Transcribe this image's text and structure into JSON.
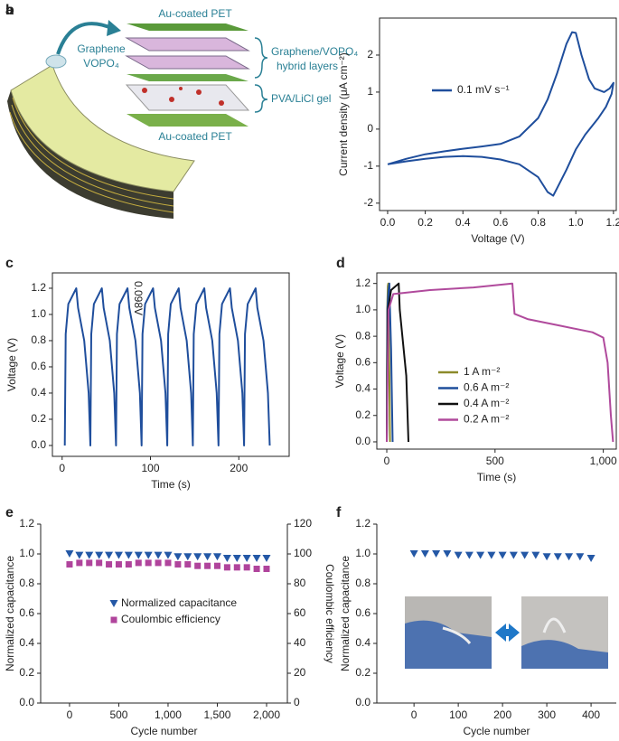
{
  "diagram": {
    "label": "a",
    "labels": [
      "Au-coated PET",
      "Graphene",
      "VOPO₄",
      "Graphene/VOPO₄",
      "hybrid layers",
      "PVA/LiCl gel",
      "Au-coated PET"
    ]
  },
  "chart_data": [
    {
      "type": "line",
      "label": "b",
      "xlabel": "Voltage (V)",
      "ylabel": "Current density (μA cm⁻²)",
      "xlim": [
        -0.043,
        1.215
      ],
      "ylim": [
        -2.2,
        3.0
      ],
      "xticks": [
        {
          "value": 0,
          "label": "0.0"
        },
        0.2,
        0.4,
        0.6,
        0.8,
        {
          "value": 1,
          "label": "1.0"
        },
        1.2
      ],
      "yticks": [
        -2,
        -1,
        0,
        1,
        2
      ],
      "series": [
        {
          "name": "0.1 mV s⁻¹",
          "color": "#1f4e9c",
          "x": [
            0,
            0.1,
            0.2,
            0.3,
            0.4,
            0.5,
            0.6,
            0.7,
            0.8,
            0.85,
            0.9,
            0.95,
            0.98,
            1.0,
            1.03,
            1.07,
            1.1,
            1.15,
            1.18,
            1.2,
            1.19,
            1.16,
            1.12,
            1.05,
            1.0,
            0.95,
            0.9,
            0.88,
            0.85,
            0.8,
            0.7,
            0.6,
            0.5,
            0.4,
            0.3,
            0.2,
            0.1,
            0
          ],
          "values": [
            -0.95,
            -0.8,
            -0.68,
            -0.6,
            -0.53,
            -0.47,
            -0.4,
            -0.2,
            0.3,
            0.8,
            1.5,
            2.3,
            2.62,
            2.6,
            2.0,
            1.35,
            1.1,
            1.0,
            1.1,
            1.25,
            0.95,
            0.6,
            0.3,
            -0.15,
            -0.55,
            -1.1,
            -1.6,
            -1.8,
            -1.7,
            -1.3,
            -0.95,
            -0.82,
            -0.75,
            -0.73,
            -0.75,
            -0.8,
            -0.87,
            -0.95
          ]
        }
      ]
    },
    {
      "type": "line",
      "label": "c",
      "xlabel": "Time (s)",
      "ylabel": "Voltage (V)",
      "annotation": "0.098V",
      "annotation_color": "#e02020",
      "xlim": [
        -11,
        257
      ],
      "ylim": [
        -0.083,
        1.317
      ],
      "xticks": [
        0,
        100,
        200
      ],
      "yticks": [
        {
          "value": 0,
          "label": "0.0"
        },
        0.2,
        0.4,
        0.6,
        0.8,
        {
          "value": 1,
          "label": "1.0"
        },
        1.2
      ],
      "series": [
        {
          "color": "#1f4e9c",
          "x": [
            3,
            4,
            7,
            16,
            18,
            25,
            30,
            32,
            33,
            36,
            45,
            47,
            54,
            59,
            61,
            62,
            65,
            74,
            76,
            83,
            88,
            90,
            91,
            94,
            103,
            105,
            112,
            117,
            119,
            120,
            123,
            132,
            134,
            141,
            146,
            148,
            149,
            152,
            161,
            163,
            170,
            175,
            177,
            178,
            181,
            190,
            192,
            199,
            204,
            206,
            207,
            210,
            219,
            221,
            228,
            233,
            235
          ],
          "values": [
            0,
            0.85,
            1.08,
            1.2,
            1.05,
            0.8,
            0.4,
            0,
            0.85,
            1.08,
            1.2,
            1.05,
            0.8,
            0.4,
            0,
            0.85,
            1.08,
            1.2,
            1.05,
            0.8,
            0.4,
            0,
            0.85,
            1.08,
            1.2,
            1.05,
            0.8,
            0.4,
            0,
            0.85,
            1.08,
            1.2,
            1.05,
            0.8,
            0.4,
            0,
            0.85,
            1.08,
            1.2,
            1.05,
            0.8,
            0.4,
            0,
            0.85,
            1.08,
            1.2,
            1.05,
            0.8,
            0.4,
            0,
            0.85,
            1.08,
            1.2,
            1.05,
            0.8,
            0.4,
            0
          ]
        }
      ]
    },
    {
      "type": "line",
      "label": "d",
      "xlabel": "Time (s)",
      "ylabel": "Voltage (V)",
      "xlim": [
        -46,
        1060
      ],
      "ylim": [
        -0.055,
        1.28
      ],
      "xticks": [
        0,
        500,
        {
          "value": 1000,
          "label": "1,000"
        }
      ],
      "yticks": [
        {
          "value": 0,
          "label": "0.0"
        },
        0.2,
        0.4,
        0.6,
        0.8,
        {
          "value": 1,
          "label": "1.0"
        },
        1.2
      ],
      "series": [
        {
          "name": "1 A m⁻²",
          "color": "#8c8a2a",
          "x": [
            0,
            2,
            5,
            7,
            8,
            12,
            15
          ],
          "values": [
            0,
            1.0,
            1.18,
            1.2,
            1.0,
            0.5,
            0
          ]
        },
        {
          "name": "0.6 A m⁻²",
          "color": "#1f4e9c",
          "x": [
            0,
            3,
            8,
            12,
            14,
            20,
            27
          ],
          "values": [
            0,
            1.0,
            1.15,
            1.2,
            1.05,
            0.7,
            0
          ]
        },
        {
          "name": "0.4 A m⁻²",
          "color": "#111111",
          "x": [
            0,
            5,
            20,
            55,
            60,
            75,
            90,
            100
          ],
          "values": [
            0,
            1.0,
            1.15,
            1.2,
            1.0,
            0.75,
            0.5,
            0
          ]
        },
        {
          "name": "0.2 A m⁻²",
          "color": "#b04a9c",
          "x": [
            0,
            8,
            30,
            200,
            400,
            580,
            590,
            650,
            800,
            950,
            1000,
            1020,
            1035,
            1045
          ],
          "values": [
            0,
            1.0,
            1.12,
            1.15,
            1.17,
            1.2,
            0.97,
            0.93,
            0.88,
            0.83,
            0.79,
            0.6,
            0.2,
            0
          ]
        }
      ]
    },
    {
      "type": "scatter",
      "label": "e",
      "xlabel": "Cycle number",
      "ylabel": "Normalized capacitance",
      "y2label": "Coulombic efficiency",
      "xlim": [
        -293,
        2211
      ],
      "ylim": [
        0,
        1.2
      ],
      "y2lim": [
        0,
        120
      ],
      "xticks": [
        0,
        500,
        {
          "value": 1000,
          "label": "1,000"
        },
        {
          "value": 1500,
          "label": "1,500"
        },
        {
          "value": 2000,
          "label": "2,000"
        }
      ],
      "yticks": [
        {
          "value": 0,
          "label": "0.0"
        },
        0.2,
        0.4,
        0.6,
        0.8,
        {
          "value": 1,
          "label": "1.0"
        },
        1.2
      ],
      "y2ticks": [
        0,
        20,
        40,
        60,
        80,
        100,
        120
      ],
      "x": [
        0,
        100,
        200,
        300,
        400,
        500,
        600,
        700,
        800,
        900,
        1000,
        1100,
        1200,
        1300,
        1400,
        1500,
        1600,
        1700,
        1800,
        1900,
        2000
      ],
      "series": [
        {
          "name": "Normalized capacitance",
          "color": "#2458a6",
          "marker": "triangle-down",
          "values": [
            1.0,
            0.99,
            0.99,
            0.99,
            0.99,
            0.99,
            0.99,
            0.99,
            0.99,
            0.99,
            0.99,
            0.98,
            0.98,
            0.98,
            0.98,
            0.98,
            0.97,
            0.97,
            0.97,
            0.97,
            0.97
          ]
        },
        {
          "name": "Coulombic efficiency",
          "color": "#b0449c",
          "marker": "square",
          "axis": "y2",
          "values": [
            93,
            94,
            94,
            94,
            93,
            93,
            93,
            94,
            94,
            94,
            94,
            93,
            93,
            92,
            92,
            92,
            91,
            91,
            91,
            90,
            90
          ]
        }
      ]
    },
    {
      "type": "scatter",
      "label": "f",
      "xlabel": "Cycle number",
      "ylabel": "Normalized capacitance",
      "xlim": [
        -84,
        457
      ],
      "ylim": [
        0,
        1.2
      ],
      "xticks": [
        0,
        100,
        200,
        300,
        400
      ],
      "yticks": [
        {
          "value": 0,
          "label": "0.0"
        },
        0.2,
        0.4,
        0.6,
        0.8,
        {
          "value": 1,
          "label": "1.0"
        },
        1.2
      ],
      "x": [
        0,
        25,
        50,
        75,
        100,
        125,
        150,
        175,
        200,
        225,
        250,
        275,
        300,
        325,
        350,
        375,
        400
      ],
      "series": [
        {
          "color": "#2458a6",
          "marker": "triangle-down",
          "values": [
            1.0,
            1.0,
            1.0,
            1.0,
            0.99,
            0.99,
            0.99,
            0.99,
            0.99,
            0.99,
            0.99,
            0.99,
            0.98,
            0.98,
            0.98,
            0.98,
            0.97
          ]
        }
      ]
    }
  ]
}
